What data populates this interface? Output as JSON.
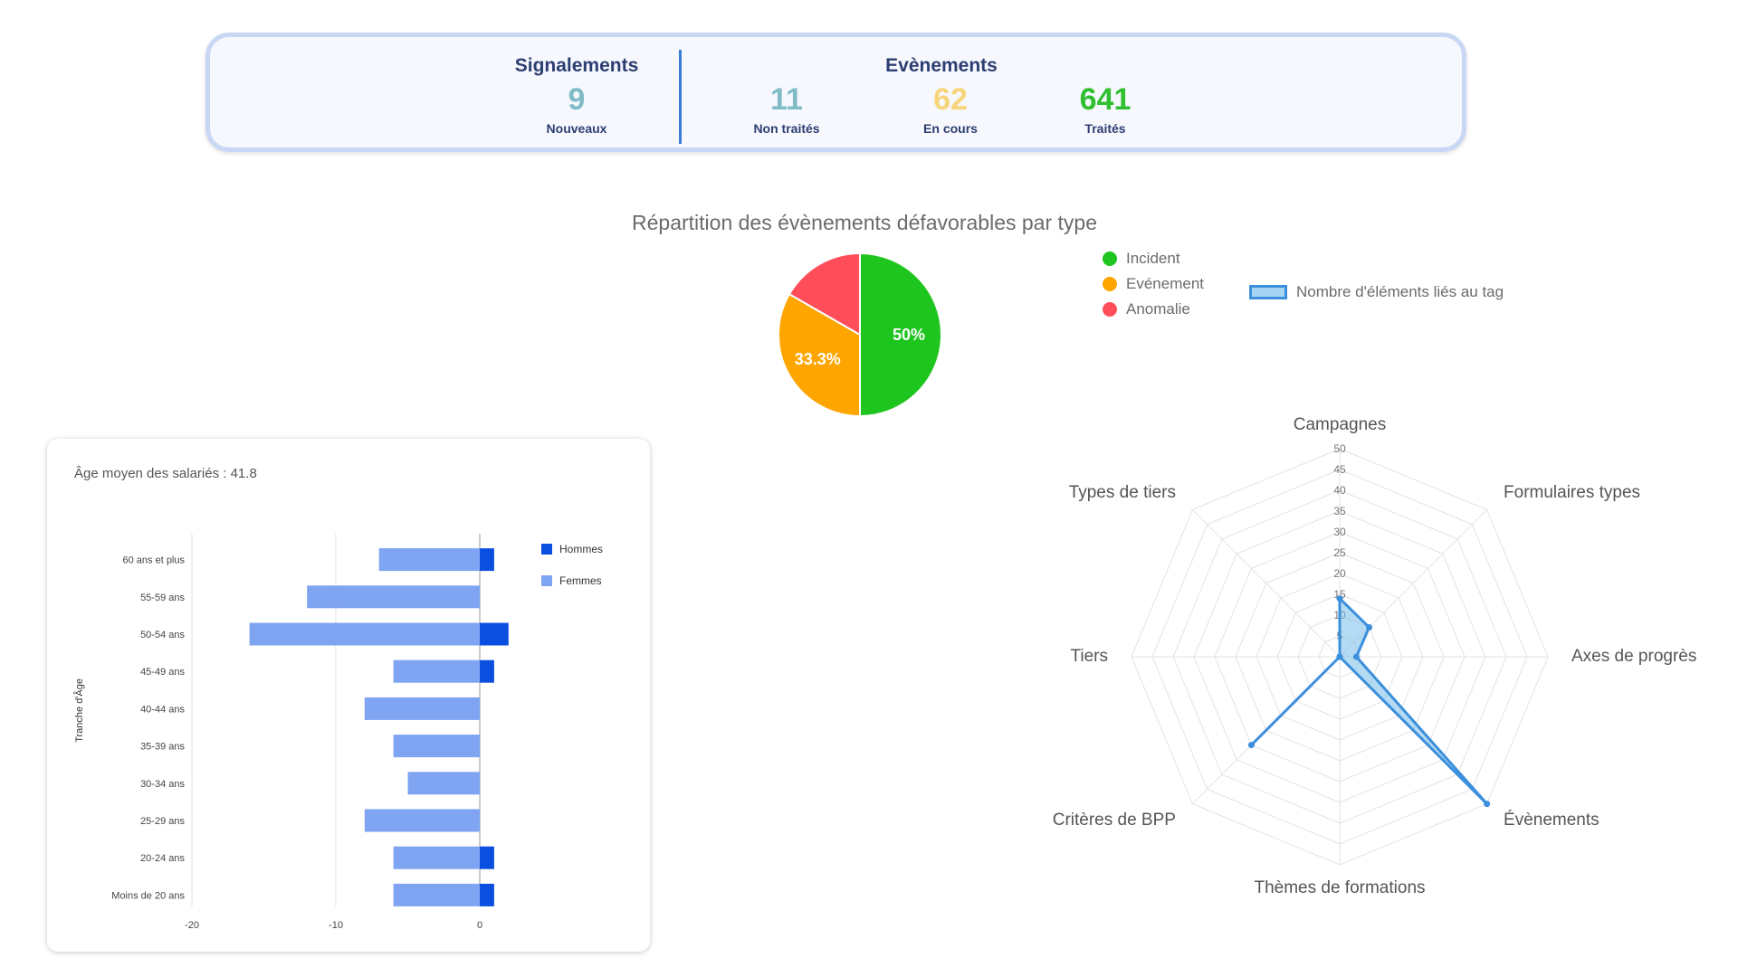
{
  "stats": {
    "signalements": {
      "title": "Signalements",
      "value": "9",
      "label": "Nouveaux",
      "color": "#7fbcc6"
    },
    "evenements": {
      "title": "Evènements",
      "items": [
        {
          "value": "11",
          "label": "Non traités",
          "color": "#7fbcc6"
        },
        {
          "value": "62",
          "label": "En cours",
          "color": "#f7d57a"
        },
        {
          "value": "641",
          "label": "Traités",
          "color": "#2fbf2f"
        }
      ]
    }
  },
  "chart_data": [
    {
      "type": "pie",
      "title": "Répartition des évènements défavorables par type",
      "series": [
        {
          "name": "Incident",
          "value": 50,
          "color": "#1ec51e",
          "label": "50%"
        },
        {
          "name": "Evénement",
          "value": 33.3,
          "color": "#ffa500",
          "label": "33.3%"
        },
        {
          "name": "Anomalie",
          "value": 16.7,
          "color": "#ff4d5a",
          "label": ""
        }
      ]
    },
    {
      "type": "radar",
      "title": "",
      "legend": "Nombre d'éléments liés au tag",
      "axes": [
        "Campagnes",
        "Formulaires types",
        "Axes de progrès",
        "Évènements",
        "Thèmes de formations",
        "Critères de BPP",
        "Tiers",
        "Types de tiers"
      ],
      "values": [
        14,
        10,
        4,
        50,
        0,
        30,
        0,
        0
      ],
      "ticks": [
        5,
        10,
        15,
        20,
        25,
        30,
        35,
        40,
        45,
        50
      ],
      "max": 50,
      "color": "#3b8fdc"
    },
    {
      "type": "bar",
      "orientation": "horizontal",
      "title": "Âge moyen des salariés : 41.8",
      "ylabel": "Tranche d'Âge",
      "categories": [
        "60 ans et plus",
        "55-59 ans",
        "50-54 ans",
        "45-49 ans",
        "40-44 ans",
        "35-39 ans",
        "30-34 ans",
        "25-29 ans",
        "20-24 ans",
        "Moins de 20 ans"
      ],
      "series": [
        {
          "name": "Hommes",
          "color": "#0b4fe0",
          "values": [
            1,
            0,
            2,
            1,
            0,
            0,
            0,
            0,
            1,
            1
          ]
        },
        {
          "name": "Femmes",
          "color": "#7ea4f2",
          "values": [
            -7,
            -12,
            -16,
            -6,
            -8,
            -6,
            -5,
            -8,
            -6,
            -6
          ]
        }
      ],
      "xlim": [
        -20,
        2
      ],
      "xticks": [
        -20,
        -10,
        0
      ]
    }
  ]
}
